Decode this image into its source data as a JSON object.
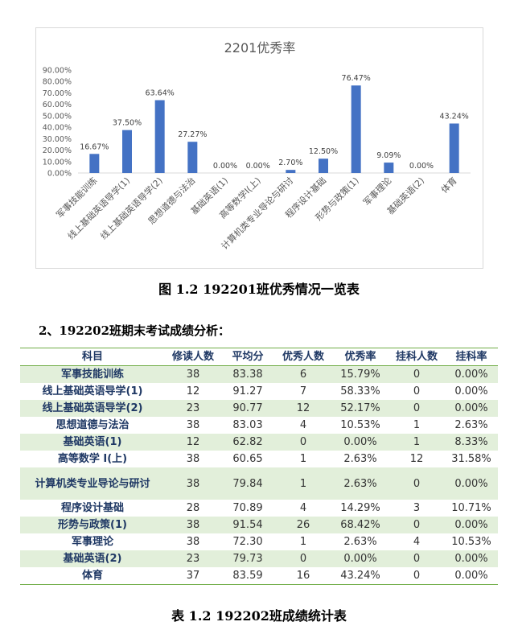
{
  "chart_data": {
    "type": "bar",
    "title": "2201优秀率",
    "categories": [
      "军事技能训练",
      "线上基础英语导学(1)",
      "线上基础英语导学(2)",
      "思想道德与法治",
      "基础英语(1)",
      "高等数学I(上)",
      "计算机类专业导论与研讨",
      "程序设计基础",
      "形势与政策(1)",
      "军事理论",
      "基础英语(2)",
      "体育"
    ],
    "values": [
      16.67,
      37.5,
      63.64,
      27.27,
      0.0,
      0.0,
      2.7,
      12.5,
      76.47,
      9.09,
      0.0,
      43.24
    ],
    "value_labels": [
      "16.67%",
      "37.50%",
      "63.64%",
      "27.27%",
      "0.00%",
      "0.00%",
      "2.70%",
      "12.50%",
      "76.47%",
      "9.09%",
      "0.00%",
      "43.24%"
    ],
    "yticks": [
      "0.00%",
      "10.00%",
      "20.00%",
      "30.00%",
      "40.00%",
      "50.00%",
      "60.00%",
      "70.00%",
      "80.00%",
      "90.00%"
    ],
    "ylim": [
      0,
      90
    ],
    "bar_color": "#4472c4",
    "grid": false
  },
  "figure_caption": "图 1.2 192201班优秀情况一览表",
  "section_heading": "2、192202班期末考试成绩分析：",
  "table": {
    "headers": [
      "科目",
      "修读人数",
      "平均分",
      "优秀人数",
      "优秀率",
      "挂科人数",
      "挂科率"
    ],
    "rows": [
      [
        "军事技能训练",
        "38",
        "83.38",
        "6",
        "15.79%",
        "0",
        "0.00%"
      ],
      [
        "线上基础英语导学(1)",
        "12",
        "91.27",
        "7",
        "58.33%",
        "0",
        "0.00%"
      ],
      [
        "线上基础英语导学(2)",
        "23",
        "90.77",
        "12",
        "52.17%",
        "0",
        "0.00%"
      ],
      [
        "思想道德与法治",
        "38",
        "83.03",
        "4",
        "10.53%",
        "1",
        "2.63%"
      ],
      [
        "基础英语(1)",
        "12",
        "62.82",
        "0",
        "0.00%",
        "1",
        "8.33%"
      ],
      [
        "高等数学 I(上)",
        "38",
        "60.65",
        "1",
        "2.63%",
        "12",
        "31.58%"
      ],
      [
        "计算机类专业导论与研讨",
        "38",
        "79.84",
        "1",
        "2.63%",
        "0",
        "0.00%"
      ],
      [
        "程序设计基础",
        "28",
        "70.89",
        "4",
        "14.29%",
        "3",
        "10.71%"
      ],
      [
        "形势与政策(1)",
        "38",
        "91.54",
        "26",
        "68.42%",
        "0",
        "0.00%"
      ],
      [
        "军事理论",
        "38",
        "72.30",
        "1",
        "2.63%",
        "4",
        "10.53%"
      ],
      [
        "基础英语(2)",
        "23",
        "79.73",
        "0",
        "0.00%",
        "0",
        "0.00%"
      ],
      [
        "体育",
        "37",
        "83.59",
        "16",
        "43.24%",
        "0",
        "0.00%"
      ]
    ],
    "header_color": "#1f3864",
    "stripe_color": "#e2efda",
    "rule_color": "#70ad47"
  },
  "table_caption": "表 1.2 192202班成绩统计表"
}
